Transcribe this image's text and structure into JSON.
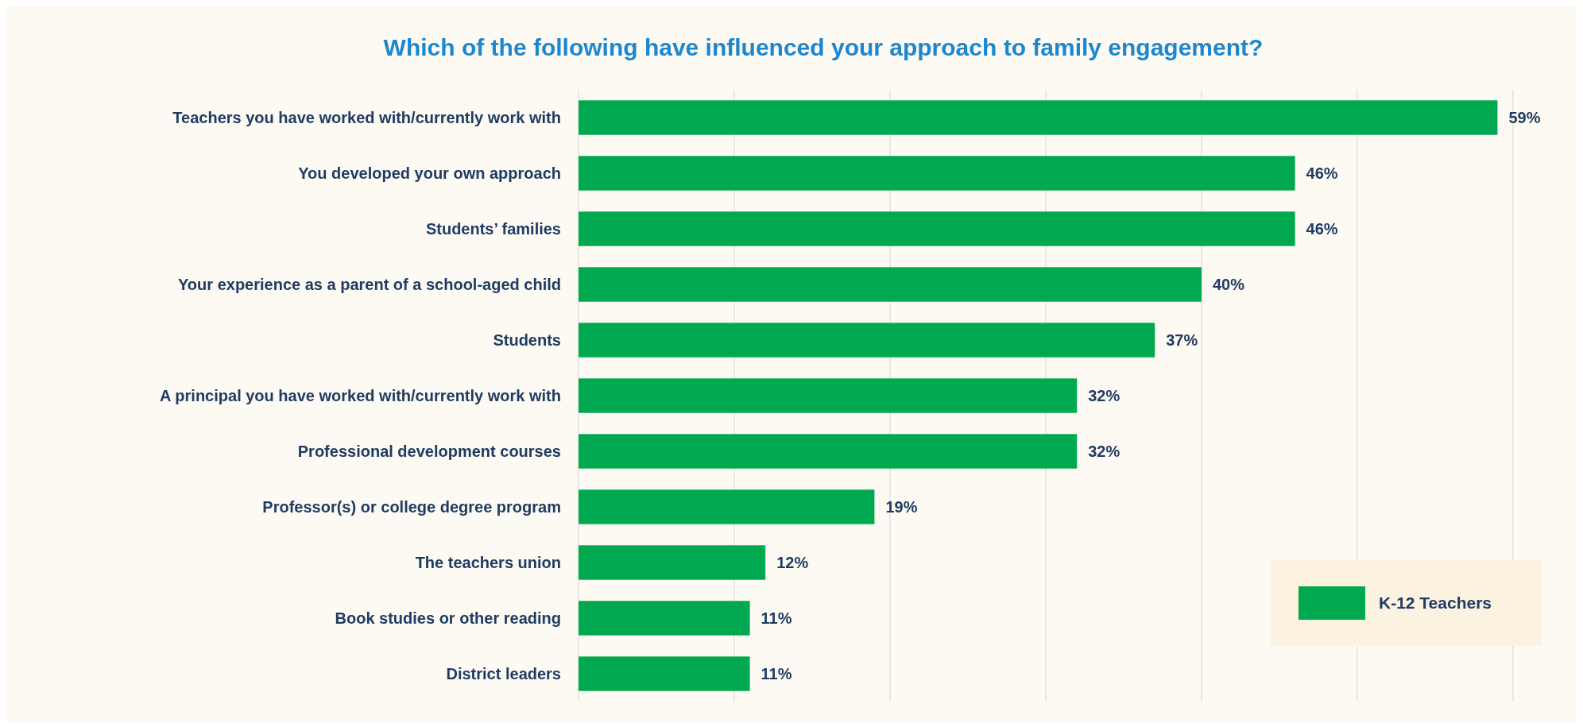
{
  "chart_data": {
    "type": "bar",
    "orientation": "horizontal",
    "title": "Which of the following have influenced your approach to family engagement?",
    "categories": [
      "Teachers you have worked with/currently work with",
      "You developed your own approach",
      "Students’ families",
      "Your experience as a parent of a school-aged child",
      "Students",
      "A principal you have worked with/currently work with",
      "Professional development courses",
      "Professor(s) or college degree program",
      "The teachers union",
      "Book studies or other reading",
      "District leaders"
    ],
    "series": [
      {
        "name": "K-12 Teachers",
        "color": "#00a84f",
        "values": [
          59,
          46,
          46,
          40,
          37,
          32,
          32,
          19,
          12,
          11,
          11
        ],
        "value_labels": [
          "59%",
          "46%",
          "46%",
          "40%",
          "37%",
          "32%",
          "32%",
          "19%",
          "12%",
          "11%",
          "11%"
        ]
      }
    ],
    "xlim": [
      0,
      60
    ],
    "xticks": [
      {
        "value": 0,
        "label": null
      },
      {
        "value": 10,
        "label": null
      },
      {
        "value": 20,
        "label": null
      },
      {
        "value": 30,
        "label": null
      },
      {
        "value": 40,
        "label": null
      },
      {
        "value": 50,
        "label": null
      },
      {
        "value": 60,
        "label": null
      }
    ],
    "tick_labels": "y",
    "grid": "x",
    "legend": "bottom right"
  }
}
